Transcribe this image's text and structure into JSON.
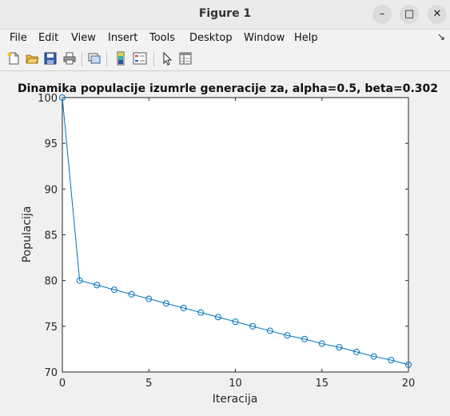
{
  "window": {
    "title": "Figure 1",
    "minimize_glyph": "–",
    "maximize_glyph": "□",
    "close_glyph": "✕"
  },
  "menu": {
    "items": [
      {
        "label": "File"
      },
      {
        "label": "Edit"
      },
      {
        "label": "View"
      },
      {
        "label": "Insert"
      },
      {
        "label": "Tools"
      },
      {
        "label": "Desktop"
      },
      {
        "label": "Window"
      },
      {
        "label": "Help"
      }
    ],
    "dock_glyph": "↘"
  },
  "toolbar": {
    "icons": [
      "new-figure-icon",
      "open-file-icon",
      "save-icon",
      "print-icon",
      "link-plot-icon",
      "colorbar-icon",
      "legend-icon",
      "pointer-icon",
      "property-inspector-icon"
    ]
  },
  "colors": {
    "line": "#0072bd",
    "axes_bg": "#ffffff",
    "text": "#222222"
  },
  "chart_data": {
    "type": "line",
    "title": "Dinamika populacije izumrle generacije za, alpha=0.5, beta=0.302",
    "xlabel": "Iteracija",
    "ylabel": "Populacija",
    "xlim": [
      0,
      20
    ],
    "ylim": [
      70,
      100
    ],
    "xticks": [
      0,
      5,
      10,
      15,
      20
    ],
    "yticks": [
      70,
      75,
      80,
      85,
      90,
      95,
      100
    ],
    "marker": "circle",
    "grid": false,
    "series": [
      {
        "x": [
          0,
          1,
          2,
          3,
          4,
          5,
          6,
          7,
          8,
          9,
          10,
          11,
          12,
          13,
          14,
          15,
          16,
          17,
          18,
          19,
          20
        ],
        "values": [
          100,
          80,
          79.5,
          79,
          78.5,
          78,
          77.5,
          77,
          76.5,
          76,
          75.5,
          75,
          74.5,
          74,
          73.6,
          73.1,
          72.7,
          72.2,
          71.7,
          71.3,
          70.8
        ]
      }
    ]
  }
}
